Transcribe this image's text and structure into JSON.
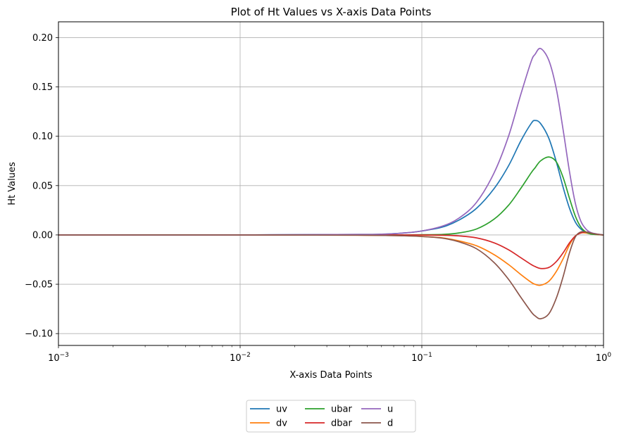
{
  "chart_data": {
    "type": "line",
    "title": "Plot of Ht Values vs X-axis Data Points",
    "xlabel": "X-axis Data Points",
    "ylabel": "Ht Values",
    "xscale": "log",
    "xlim": [
      0.001,
      1
    ],
    "ylim": [
      -0.112,
      0.216
    ],
    "grid": true,
    "legend_position": "bottom-center",
    "legend_columns": 3,
    "x_ticks": [
      {
        "value": 0.001,
        "base": "10",
        "exp": "−3"
      },
      {
        "value": 0.01,
        "base": "10",
        "exp": "−2"
      },
      {
        "value": 0.1,
        "base": "10",
        "exp": "−1"
      },
      {
        "value": 1,
        "base": "10",
        "exp": "0"
      }
    ],
    "y_ticks": [
      {
        "value": -0.1,
        "label": "−0.10"
      },
      {
        "value": -0.05,
        "label": "−0.05"
      },
      {
        "value": 0.0,
        "label": "0.00"
      },
      {
        "value": 0.05,
        "label": "0.05"
      },
      {
        "value": 0.1,
        "label": "0.10"
      },
      {
        "value": 0.15,
        "label": "0.15"
      },
      {
        "value": 0.2,
        "label": "0.20"
      }
    ],
    "x": [
      0.001,
      0.01,
      0.05,
      0.08,
      0.1,
      0.13,
      0.16,
      0.2,
      0.25,
      0.3,
      0.35,
      0.4,
      0.42,
      0.45,
      0.5,
      0.55,
      0.6,
      0.65,
      0.7,
      0.75,
      0.8,
      0.85,
      0.9,
      0.95,
      1.0
    ],
    "series": [
      {
        "name": "uv",
        "color": "#1f77b4",
        "values": [
          0,
          0,
          0.0005,
          0.002,
          0.004,
          0.008,
          0.015,
          0.027,
          0.047,
          0.07,
          0.095,
          0.113,
          0.116,
          0.113,
          0.098,
          0.074,
          0.048,
          0.027,
          0.013,
          0.006,
          0.003,
          0.0015,
          0.0008,
          0.0003,
          0
        ]
      },
      {
        "name": "dv",
        "color": "#ff7f0e",
        "values": [
          0,
          0,
          -0.0003,
          -0.0008,
          -0.0015,
          -0.003,
          -0.006,
          -0.011,
          -0.02,
          -0.03,
          -0.04,
          -0.048,
          -0.05,
          -0.051,
          -0.047,
          -0.037,
          -0.024,
          -0.01,
          -0.001,
          0.002,
          0.002,
          0.001,
          0.0005,
          0.0002,
          0
        ]
      },
      {
        "name": "ubar",
        "color": "#2ca02c",
        "values": [
          0,
          0,
          0,
          0,
          0.0002,
          0.0005,
          0.002,
          0.006,
          0.016,
          0.03,
          0.047,
          0.063,
          0.068,
          0.075,
          0.079,
          0.074,
          0.058,
          0.037,
          0.019,
          0.008,
          0.003,
          0.001,
          0.0005,
          0.0002,
          0
        ]
      },
      {
        "name": "dbar",
        "color": "#d62728",
        "values": [
          0,
          0,
          0,
          0,
          -0.0001,
          -0.0003,
          -0.001,
          -0.003,
          -0.008,
          -0.015,
          -0.023,
          -0.03,
          -0.032,
          -0.034,
          -0.033,
          -0.027,
          -0.018,
          -0.008,
          -0.001,
          0.002,
          0.003,
          0.002,
          0.001,
          0.0003,
          0
        ]
      },
      {
        "name": "u",
        "color": "#9467bd",
        "values": [
          0,
          0,
          0.0005,
          0.002,
          0.004,
          0.009,
          0.017,
          0.033,
          0.063,
          0.1,
          0.142,
          0.176,
          0.183,
          0.189,
          0.177,
          0.148,
          0.106,
          0.064,
          0.032,
          0.014,
          0.006,
          0.0025,
          0.0013,
          0.0005,
          0
        ]
      },
      {
        "name": "d",
        "color": "#8c564b",
        "values": [
          0,
          0,
          -0.0003,
          -0.0009,
          -0.0016,
          -0.0033,
          -0.007,
          -0.014,
          -0.028,
          -0.045,
          -0.063,
          -0.078,
          -0.082,
          -0.085,
          -0.08,
          -0.064,
          -0.042,
          -0.018,
          -0.002,
          0.003,
          0.003,
          0.002,
          0.001,
          0.0005,
          0
        ]
      }
    ]
  }
}
